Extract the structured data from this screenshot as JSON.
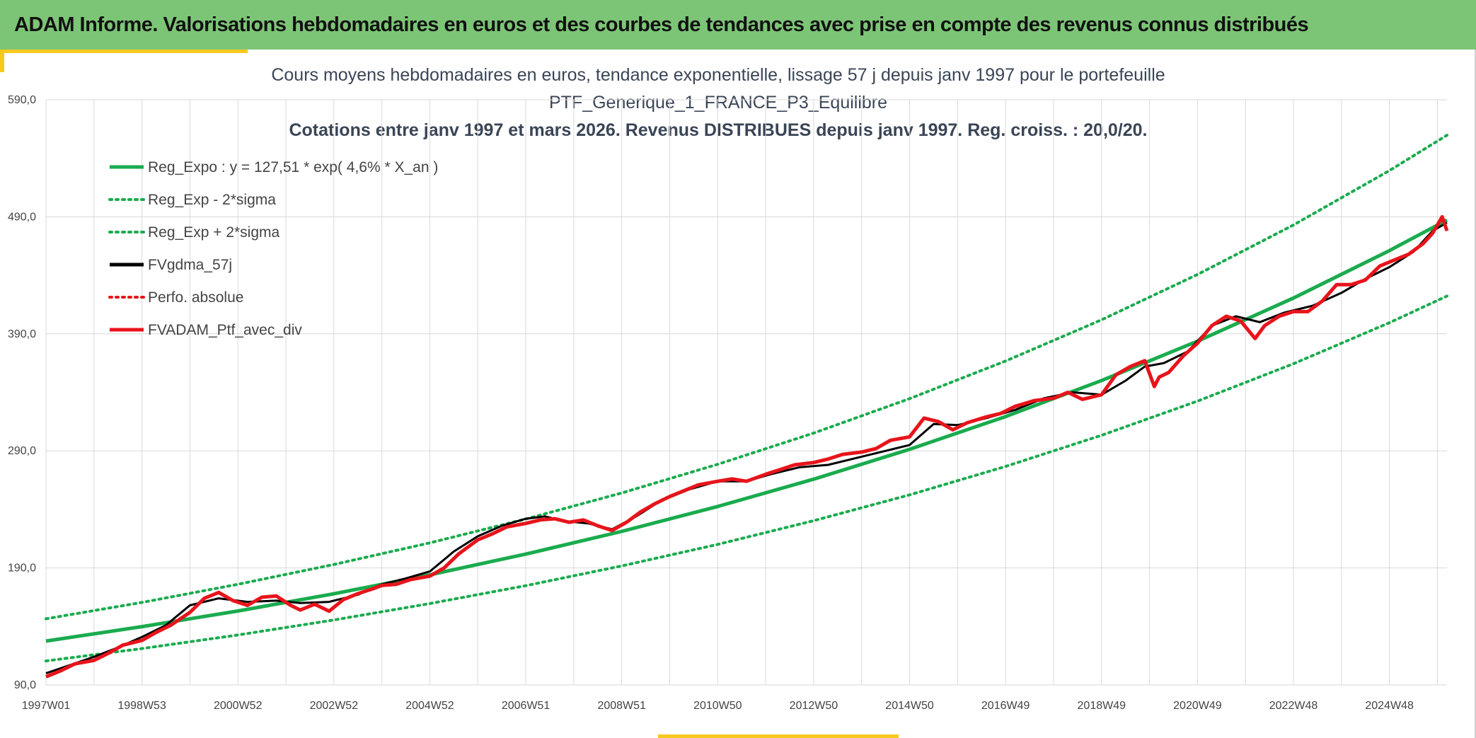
{
  "header": {
    "title": "ADAM Informe. Valorisations hebdomadaires en euros et des courbes de tendances avec prise en compte des revenus connus distribués"
  },
  "colors": {
    "banner": "#7cc576",
    "accent": "#f7c81e",
    "trend": "#1aab4e",
    "portfolio": "#e8141b",
    "smoothed": "#000000",
    "grid": "#d9d9d9"
  },
  "chart_data": {
    "type": "line",
    "title_lines": [
      "Cours moyens hebdomadaires en euros, tendance exponentielle, lissage 57 j depuis janv 1997 pour le portefeuille",
      "PTF_Generique_1_FRANCE_P3_Equilibre",
      "Cotations entre janv 1997 et mars 2026. Revenus DISTRIBUES depuis janv 1997. Reg. croiss. : 20,0/20."
    ],
    "xlabel": "",
    "ylabel": "",
    "x_tick_labels": [
      "1997W01",
      "1998W53",
      "2000W52",
      "2002W52",
      "2004W52",
      "2006W51",
      "2008W51",
      "2010W50",
      "2012W50",
      "2014W50",
      "2016W49",
      "2018W49",
      "2020W49",
      "2022W48",
      "2024W48"
    ],
    "x_tick_years": [
      1997.0,
      1999.0,
      2001.0,
      2003.0,
      2005.0,
      2007.0,
      2009.0,
      2011.0,
      2013.0,
      2015.0,
      2017.0,
      2019.0,
      2021.0,
      2023.0,
      2025.0
    ],
    "xlim": [
      1997.0,
      2026.2
    ],
    "y_tick_labels": [
      "90,0",
      "190,0",
      "290,0",
      "390,0",
      "490,0",
      "590,0"
    ],
    "y_ticks": [
      90,
      190,
      290,
      390,
      490,
      590
    ],
    "ylim": [
      90,
      590
    ],
    "grid": true,
    "legend_position": "top-left",
    "legend": [
      {
        "label": "Reg_Expo : y = 127,51 * exp( 4,6% *  X_an )",
        "color": "#1aab4e",
        "style": "solid"
      },
      {
        "label": "Reg_Exp - 2*sigma",
        "color": "#1aab4e",
        "style": "dotted"
      },
      {
        "label": "Reg_Exp + 2*sigma",
        "color": "#1aab4e",
        "style": "dotted"
      },
      {
        "label": "FVgdma_57j",
        "color": "#000000",
        "style": "solid"
      },
      {
        "label": "Perfo. absolue",
        "color": "#e8141b",
        "style": "dotted"
      },
      {
        "label": "FVADAM_Ptf_avec_div",
        "color": "#e8141b",
        "style": "solid"
      }
    ],
    "series": [
      {
        "name": "Reg_Expo : y = 127,51 * exp( 4,6% *  X_an )",
        "color": "#1aab4e",
        "style": "solid",
        "x": [
          1997.0,
          1999.0,
          2001.0,
          2003.0,
          2005.0,
          2007.0,
          2009.0,
          2011.0,
          2013.0,
          2015.0,
          2017.0,
          2019.0,
          2021.0,
          2023.0,
          2025.0,
          2026.2
        ],
        "y": [
          127.5,
          139.8,
          153.2,
          167.9,
          184.1,
          201.8,
          221.2,
          242.5,
          265.8,
          291.3,
          319.3,
          350.1,
          383.7,
          420.6,
          461.1,
          487.3
        ]
      },
      {
        "name": "Reg_Exp - 2*sigma",
        "color": "#1aab4e",
        "style": "dotted",
        "x": [
          1997.0,
          1999.0,
          2001.0,
          2003.0,
          2005.0,
          2007.0,
          2009.0,
          2011.0,
          2013.0,
          2015.0,
          2017.0,
          2019.0,
          2021.0,
          2023.0,
          2025.0,
          2026.2
        ],
        "y": [
          110.5,
          121.1,
          132.7,
          145.5,
          159.5,
          174.8,
          191.7,
          210.1,
          230.3,
          252.4,
          276.7,
          303.3,
          332.5,
          364.4,
          399.5,
          422.3
        ]
      },
      {
        "name": "Reg_Exp + 2*sigma",
        "color": "#1aab4e",
        "style": "dotted",
        "x": [
          1997.0,
          1999.0,
          2001.0,
          2003.0,
          2005.0,
          2007.0,
          2009.0,
          2011.0,
          2013.0,
          2015.0,
          2017.0,
          2019.0,
          2021.0,
          2023.0,
          2025.0,
          2026.2
        ],
        "y": [
          146.5,
          160.5,
          176.0,
          192.9,
          211.4,
          231.8,
          254.0,
          278.5,
          305.2,
          334.6,
          366.8,
          402.0,
          440.7,
          483.0,
          529.5,
          559.7
        ]
      },
      {
        "name": "FVgdma_57j",
        "color": "#000000",
        "style": "solid",
        "x": [
          1997.0,
          1997.5,
          1998.0,
          1998.5,
          1999.0,
          1999.5,
          2000.0,
          2000.6,
          2001.2,
          2001.8,
          2002.3,
          2002.9,
          2003.5,
          2004.0,
          2004.5,
          2005.0,
          2005.5,
          2006.0,
          2006.5,
          2007.0,
          2007.4,
          2007.8,
          2008.3,
          2008.8,
          2009.3,
          2009.8,
          2010.4,
          2011.0,
          2011.6,
          2012.1,
          2012.7,
          2013.3,
          2013.9,
          2014.5,
          2015.0,
          2015.5,
          2016.0,
          2016.6,
          2017.2,
          2017.8,
          2018.4,
          2019.0,
          2019.5,
          2019.9,
          2020.3,
          2020.8,
          2021.3,
          2021.8,
          2022.3,
          2022.8,
          2023.4,
          2024.0,
          2024.5,
          2025.0,
          2025.5,
          2025.9,
          2026.2
        ],
        "y": [
          100.0,
          107.0,
          114.0,
          122.0,
          131.0,
          141.0,
          158.0,
          164.0,
          161.0,
          162.0,
          160.0,
          161.0,
          167.0,
          176.0,
          181.0,
          187.0,
          204.0,
          217.0,
          226.0,
          232.0,
          234.0,
          230.0,
          228.0,
          223.0,
          234.0,
          247.0,
          257.0,
          264.0,
          264.0,
          270.0,
          276.0,
          278.0,
          284.0,
          290.0,
          295.0,
          313.0,
          312.0,
          318.0,
          325.0,
          335.0,
          340.0,
          338.0,
          350.0,
          362.0,
          365.0,
          375.0,
          397.0,
          405.0,
          400.0,
          408.0,
          414.0,
          425.0,
          437.0,
          447.0,
          460.0,
          478.0,
          485.0
        ]
      },
      {
        "name": "FVADAM_Ptf_avec_div",
        "color": "#e8141b",
        "style": "solid",
        "x": [
          1997.0,
          1997.3,
          1997.6,
          1998.0,
          1998.3,
          1998.6,
          1999.0,
          1999.3,
          1999.6,
          2000.0,
          2000.3,
          2000.6,
          2000.9,
          2001.2,
          2001.5,
          2001.8,
          2002.1,
          2002.3,
          2002.6,
          2002.9,
          2003.2,
          2003.5,
          2003.8,
          2004.0,
          2004.3,
          2004.6,
          2005.0,
          2005.3,
          2005.6,
          2006.0,
          2006.3,
          2006.6,
          2007.0,
          2007.3,
          2007.6,
          2007.9,
          2008.2,
          2008.5,
          2008.8,
          2009.1,
          2009.4,
          2009.7,
          2010.0,
          2010.3,
          2010.6,
          2011.0,
          2011.3,
          2011.6,
          2012.0,
          2012.3,
          2012.6,
          2013.0,
          2013.3,
          2013.6,
          2014.0,
          2014.3,
          2014.6,
          2015.0,
          2015.3,
          2015.6,
          2015.9,
          2016.2,
          2016.6,
          2016.9,
          2017.2,
          2017.6,
          2018.0,
          2018.3,
          2018.6,
          2019.0,
          2019.3,
          2019.6,
          2019.9,
          2020.1,
          2020.2,
          2020.4,
          2020.7,
          2021.0,
          2021.3,
          2021.6,
          2021.9,
          2022.2,
          2022.4,
          2022.7,
          2023.0,
          2023.3,
          2023.6,
          2023.9,
          2024.2,
          2024.5,
          2024.8,
          2025.1,
          2025.4,
          2025.7,
          2025.9,
          2026.1,
          2026.2
        ],
        "y": [
          97.0,
          102.0,
          108.0,
          111.0,
          117.0,
          124.0,
          128.0,
          135.0,
          141.0,
          152.0,
          164.0,
          169.0,
          162.0,
          158.0,
          165.0,
          166.0,
          158.0,
          154.0,
          159.0,
          153.0,
          163.0,
          168.0,
          172.0,
          175.0,
          176.0,
          180.0,
          183.0,
          190.0,
          202.0,
          214.0,
          219.0,
          225.0,
          228.0,
          231.0,
          232.0,
          229.0,
          231.0,
          226.0,
          222.0,
          229.0,
          238.0,
          245.0,
          251.0,
          256.0,
          261.0,
          264.0,
          266.0,
          264.0,
          270.0,
          274.0,
          278.0,
          280.0,
          283.0,
          287.0,
          289.0,
          292.0,
          299.0,
          302.0,
          318.0,
          315.0,
          308.0,
          314.0,
          319.0,
          322.0,
          328.0,
          333.0,
          335.0,
          340.0,
          334.0,
          338.0,
          355.0,
          362.0,
          367.0,
          345.0,
          353.0,
          357.0,
          371.0,
          382.0,
          397.0,
          405.0,
          401.0,
          386.0,
          397.0,
          405.0,
          409.0,
          409.0,
          418.0,
          432.0,
          432.0,
          436.0,
          448.0,
          453.0,
          458.0,
          467.0,
          476.0,
          490.0,
          478.0
        ]
      }
    ]
  }
}
